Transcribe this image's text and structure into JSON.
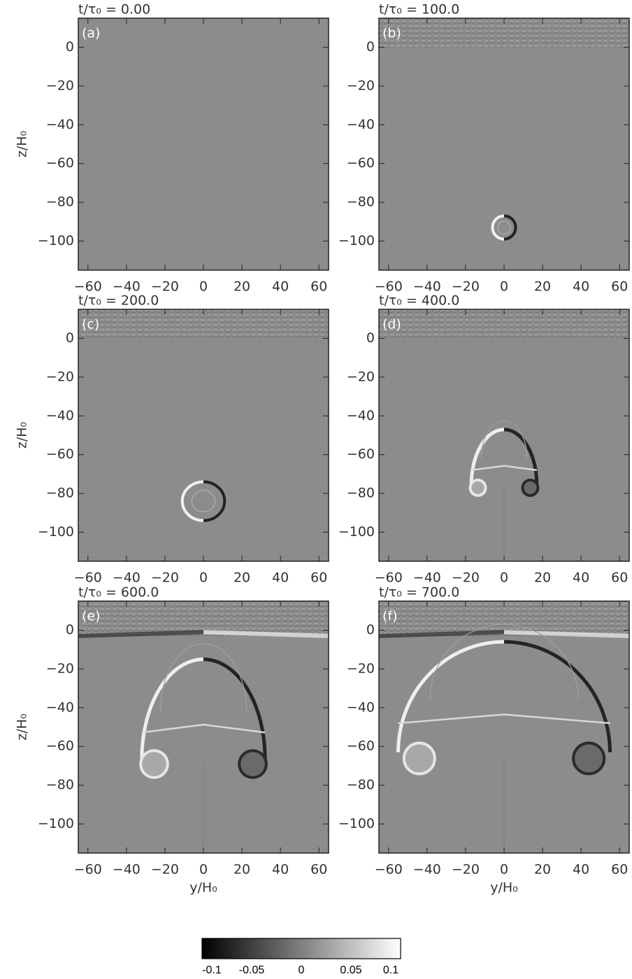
{
  "chart_data": [
    {
      "type": "heatmap",
      "title": "t/τ₀ = 0.00",
      "panel_label": "(a)",
      "ylabel": "z/H₀",
      "xlim": [
        -65,
        65
      ],
      "ylim": [
        -115,
        15
      ],
      "xticks": [
        {
          "value": -60,
          "label": "−60"
        },
        {
          "value": -40,
          "label": "−40"
        },
        {
          "value": -20,
          "label": "−20"
        },
        0,
        20,
        40,
        60
      ],
      "yticks": [
        0,
        {
          "value": -20,
          "label": "−20"
        },
        {
          "value": -40,
          "label": "−40"
        },
        {
          "value": -60,
          "label": "−60"
        },
        {
          "value": -80,
          "label": "−80"
        },
        {
          "value": -100,
          "label": "−100"
        }
      ]
    },
    {
      "type": "heatmap",
      "title": "t/τ₀ = 100.0",
      "panel_label": "(b)",
      "xlim": [
        -65,
        65
      ],
      "ylim": [
        -115,
        15
      ],
      "xticks": [
        {
          "value": -60,
          "label": "−60"
        },
        {
          "value": -40,
          "label": "−40"
        },
        {
          "value": -20,
          "label": "−20"
        },
        0,
        20,
        40,
        60
      ],
      "yticks": [
        0,
        {
          "value": -20,
          "label": "−20"
        },
        {
          "value": -40,
          "label": "−40"
        },
        {
          "value": -60,
          "label": "−60"
        },
        {
          "value": -80,
          "label": "−80"
        },
        {
          "value": -100,
          "label": "−100"
        }
      ]
    },
    {
      "type": "heatmap",
      "title": "t/τ₀ = 200.0",
      "panel_label": "(c)",
      "ylabel": "z/H₀",
      "xlim": [
        -65,
        65
      ],
      "ylim": [
        -115,
        15
      ],
      "xticks": [
        {
          "value": -60,
          "label": "−60"
        },
        {
          "value": -40,
          "label": "−40"
        },
        {
          "value": -20,
          "label": "−20"
        },
        0,
        20,
        40,
        60
      ],
      "yticks": [
        0,
        {
          "value": -20,
          "label": "−20"
        },
        {
          "value": -40,
          "label": "−40"
        },
        {
          "value": -60,
          "label": "−60"
        },
        {
          "value": -80,
          "label": "−80"
        },
        {
          "value": -100,
          "label": "−100"
        }
      ]
    },
    {
      "type": "heatmap",
      "title": "t/τ₀ = 400.0",
      "panel_label": "(d)",
      "xlim": [
        -65,
        65
      ],
      "ylim": [
        -115,
        15
      ],
      "xticks": [
        {
          "value": -60,
          "label": "−60"
        },
        {
          "value": -40,
          "label": "−40"
        },
        {
          "value": -20,
          "label": "−20"
        },
        0,
        20,
        40,
        60
      ],
      "yticks": [
        0,
        {
          "value": -20,
          "label": "−20"
        },
        {
          "value": -40,
          "label": "−40"
        },
        {
          "value": -60,
          "label": "−60"
        },
        {
          "value": -80,
          "label": "−80"
        },
        {
          "value": -100,
          "label": "−100"
        }
      ]
    },
    {
      "type": "heatmap",
      "title": "t/τ₀ = 600.0",
      "panel_label": "(e)",
      "ylabel": "z/H₀",
      "xlabel": "y/H₀",
      "xlim": [
        -65,
        65
      ],
      "ylim": [
        -115,
        15
      ],
      "xticks": [
        {
          "value": -60,
          "label": "−60"
        },
        {
          "value": -40,
          "label": "−40"
        },
        {
          "value": -20,
          "label": "−20"
        },
        0,
        20,
        40,
        60
      ],
      "yticks": [
        0,
        {
          "value": -20,
          "label": "−20"
        },
        {
          "value": -40,
          "label": "−40"
        },
        {
          "value": -60,
          "label": "−60"
        },
        {
          "value": -80,
          "label": "−80"
        },
        {
          "value": -100,
          "label": "−100"
        }
      ]
    },
    {
      "type": "heatmap",
      "title": "t/τ₀ = 700.0",
      "panel_label": "(f)",
      "xlabel": "y/H₀",
      "xlim": [
        -65,
        65
      ],
      "ylim": [
        -115,
        15
      ],
      "xticks": [
        {
          "value": -60,
          "label": "−60"
        },
        {
          "value": -40,
          "label": "−40"
        },
        {
          "value": -20,
          "label": "−20"
        },
        0,
        20,
        40,
        60
      ],
      "yticks": [
        0,
        {
          "value": -20,
          "label": "−20"
        },
        {
          "value": -40,
          "label": "−40"
        },
        {
          "value": -60,
          "label": "−60"
        },
        {
          "value": -80,
          "label": "−80"
        },
        {
          "value": -100,
          "label": "−100"
        }
      ]
    },
    {
      "type": "colorbar",
      "clim": [
        -0.1,
        0.1
      ],
      "ticks": [
        -0.1,
        -0.05,
        0,
        0.05,
        0.1
      ]
    }
  ]
}
